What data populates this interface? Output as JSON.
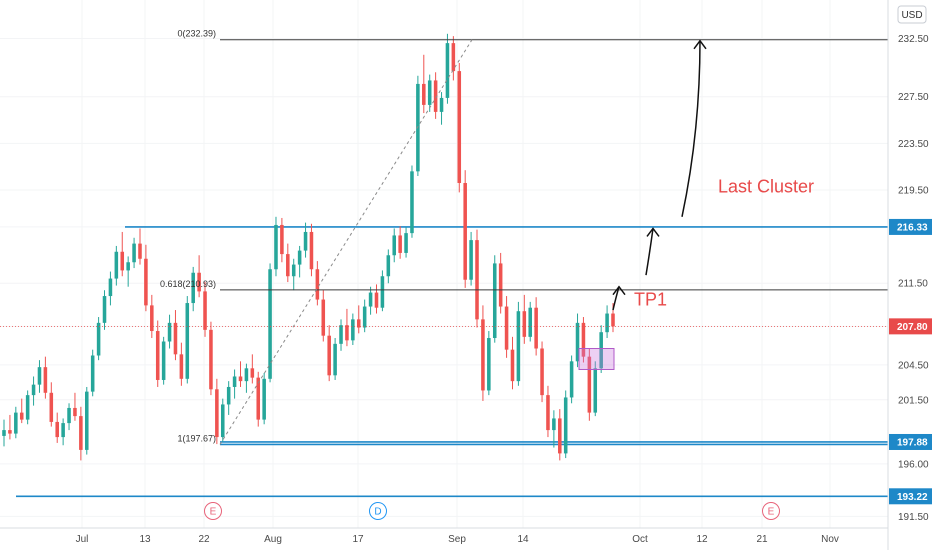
{
  "chart_data": {
    "type": "candlestick",
    "currency": "USD",
    "x_ticks": [
      "Jul",
      "13",
      "22",
      "Aug",
      "17",
      "Sep",
      "14",
      "Oct",
      "12",
      "21",
      "Nov"
    ],
    "y_ticks": [
      "191.50",
      "196.00",
      "201.50",
      "204.50",
      "207.80",
      "211.50",
      "216.33",
      "219.50",
      "223.50",
      "227.50",
      "232.50"
    ],
    "ylim": [
      190.5,
      235.8
    ],
    "price_labels": [
      {
        "value": 216.33,
        "text": "216.33",
        "color": "#1e88c8"
      },
      {
        "value": 207.8,
        "text": "207.80",
        "color": "#e84a4a"
      },
      {
        "value": 197.88,
        "text": "197.88",
        "color": "#1e88c8"
      },
      {
        "value": 193.22,
        "text": "193.22",
        "color": "#1e88c8"
      }
    ],
    "horizontal_lines": [
      {
        "value": 216.33,
        "color": "#1e88c8"
      },
      {
        "value": 197.88,
        "color": "#1e88c8"
      },
      {
        "value": 197.67,
        "color": "#1e88c8"
      },
      {
        "value": 193.22,
        "color": "#1e88c8"
      }
    ],
    "fib_levels": [
      {
        "ratio": "0",
        "value": 232.39,
        "text": "0(232.39)"
      },
      {
        "ratio": "0.618",
        "value": 210.93,
        "text": "0.618(210.93)"
      },
      {
        "ratio": "1",
        "value": 197.67,
        "text": "1(197.67)"
      }
    ],
    "last_price_line": 207.8,
    "events": [
      {
        "letter": "E",
        "x": 22,
        "color": "#e8647a"
      },
      {
        "letter": "D",
        "x": 17,
        "color": "#2196f3"
      },
      {
        "letter": "E",
        "x": 21,
        "color": "#e8647a"
      }
    ],
    "annotations": [
      {
        "text": "Last Cluster",
        "color": "#e84a4a"
      },
      {
        "text": "TP1",
        "color": "#e84a4a"
      }
    ],
    "candles": [
      [
        198.4,
        199.8,
        197.5,
        198.9
      ],
      [
        198.9,
        200.2,
        198.1,
        198.6
      ],
      [
        198.6,
        200.9,
        198.2,
        200.4
      ],
      [
        200.4,
        201.6,
        199.5,
        199.8
      ],
      [
        199.8,
        202.3,
        199.4,
        201.9
      ],
      [
        201.9,
        203.5,
        201.0,
        202.8
      ],
      [
        202.8,
        204.9,
        202.1,
        204.3
      ],
      [
        204.3,
        205.2,
        201.6,
        202.1
      ],
      [
        202.1,
        203.0,
        199.2,
        199.6
      ],
      [
        199.6,
        200.4,
        197.8,
        198.3
      ],
      [
        198.3,
        199.9,
        197.6,
        199.5
      ],
      [
        199.5,
        201.2,
        198.9,
        200.8
      ],
      [
        200.8,
        202.1,
        199.7,
        200.1
      ],
      [
        200.1,
        200.9,
        196.3,
        197.2
      ],
      [
        197.2,
        202.6,
        196.8,
        202.2
      ],
      [
        202.2,
        205.8,
        201.8,
        205.3
      ],
      [
        205.3,
        208.6,
        204.9,
        208.1
      ],
      [
        208.1,
        210.9,
        207.5,
        210.4
      ],
      [
        210.4,
        212.5,
        209.6,
        211.9
      ],
      [
        211.9,
        214.7,
        211.3,
        214.2
      ],
      [
        214.2,
        215.9,
        212.1,
        212.6
      ],
      [
        212.6,
        213.8,
        211.2,
        213.3
      ],
      [
        213.3,
        215.4,
        212.8,
        214.9
      ],
      [
        214.9,
        216.2,
        213.1,
        213.6
      ],
      [
        213.6,
        214.8,
        209.1,
        209.6
      ],
      [
        209.6,
        210.5,
        206.8,
        207.4
      ],
      [
        207.4,
        208.3,
        202.6,
        203.2
      ],
      [
        203.2,
        206.9,
        202.8,
        206.5
      ],
      [
        206.5,
        208.8,
        205.9,
        208.1
      ],
      [
        208.1,
        209.2,
        204.9,
        205.4
      ],
      [
        205.4,
        206.4,
        202.7,
        203.3
      ],
      [
        203.3,
        210.4,
        202.9,
        209.8
      ],
      [
        209.8,
        212.9,
        209.1,
        212.4
      ],
      [
        212.4,
        213.9,
        210.3,
        210.8
      ],
      [
        210.8,
        211.6,
        206.9,
        207.5
      ],
      [
        207.5,
        208.2,
        201.9,
        202.4
      ],
      [
        202.4,
        203.3,
        197.7,
        198.3
      ],
      [
        198.3,
        201.6,
        197.9,
        201.1
      ],
      [
        201.1,
        203.1,
        200.2,
        202.6
      ],
      [
        202.6,
        204.1,
        201.6,
        203.5
      ],
      [
        203.5,
        204.8,
        202.6,
        203.1
      ],
      [
        203.1,
        204.6,
        202.1,
        204.2
      ],
      [
        204.2,
        205.4,
        202.9,
        203.4
      ],
      [
        203.4,
        203.9,
        199.2,
        199.8
      ],
      [
        199.8,
        203.8,
        199.4,
        203.3
      ],
      [
        203.3,
        213.2,
        203.0,
        212.7
      ],
      [
        212.7,
        217.2,
        212.1,
        216.5
      ],
      [
        216.5,
        217.1,
        213.3,
        214.0
      ],
      [
        214.0,
        214.9,
        211.6,
        212.1
      ],
      [
        212.1,
        213.6,
        210.9,
        213.1
      ],
      [
        213.1,
        214.7,
        212.0,
        214.3
      ],
      [
        214.3,
        216.7,
        213.7,
        215.9
      ],
      [
        215.9,
        216.6,
        212.1,
        212.7
      ],
      [
        212.7,
        213.4,
        209.6,
        210.1
      ],
      [
        210.1,
        210.9,
        206.5,
        207.0
      ],
      [
        207.0,
        207.9,
        203.1,
        203.6
      ],
      [
        203.6,
        206.8,
        203.2,
        206.3
      ],
      [
        206.3,
        208.4,
        205.7,
        207.9
      ],
      [
        207.9,
        209.3,
        206.1,
        206.6
      ],
      [
        206.6,
        208.9,
        206.2,
        208.4
      ],
      [
        208.4,
        209.6,
        207.2,
        207.7
      ],
      [
        207.7,
        210.1,
        207.3,
        209.5
      ],
      [
        209.5,
        211.2,
        208.8,
        210.7
      ],
      [
        210.7,
        211.4,
        208.9,
        209.4
      ],
      [
        209.4,
        212.6,
        209.1,
        212.1
      ],
      [
        212.1,
        214.4,
        211.5,
        213.9
      ],
      [
        213.9,
        216.2,
        213.3,
        215.6
      ],
      [
        215.6,
        216.4,
        213.6,
        214.1
      ],
      [
        214.1,
        216.3,
        213.7,
        215.8
      ],
      [
        215.8,
        221.6,
        215.4,
        221.1
      ],
      [
        221.1,
        229.3,
        220.7,
        228.6
      ],
      [
        228.6,
        231.1,
        226.1,
        226.8
      ],
      [
        226.8,
        229.4,
        226.2,
        228.9
      ],
      [
        228.9,
        229.6,
        225.6,
        226.2
      ],
      [
        226.2,
        227.9,
        225.1,
        227.4
      ],
      [
        227.4,
        232.9,
        226.9,
        232.1
      ],
      [
        232.1,
        232.7,
        228.9,
        229.7
      ],
      [
        229.7,
        230.4,
        219.3,
        220.1
      ],
      [
        220.1,
        221.2,
        211.1,
        211.8
      ],
      [
        211.8,
        215.9,
        211.3,
        215.2
      ],
      [
        215.2,
        216.1,
        207.7,
        208.4
      ],
      [
        208.4,
        209.6,
        201.4,
        202.3
      ],
      [
        202.3,
        207.4,
        201.9,
        206.8
      ],
      [
        206.8,
        213.9,
        206.4,
        213.2
      ],
      [
        213.2,
        214.1,
        208.9,
        209.5
      ],
      [
        209.5,
        210.4,
        205.1,
        205.8
      ],
      [
        205.8,
        206.9,
        202.4,
        203.1
      ],
      [
        203.1,
        209.9,
        202.7,
        209.1
      ],
      [
        209.1,
        210.5,
        206.3,
        206.9
      ],
      [
        206.9,
        209.9,
        206.5,
        209.4
      ],
      [
        209.4,
        210.3,
        205.3,
        205.9
      ],
      [
        205.9,
        206.5,
        201.3,
        201.9
      ],
      [
        201.9,
        202.7,
        198.3,
        198.9
      ],
      [
        198.9,
        200.6,
        197.4,
        199.9
      ],
      [
        199.9,
        200.7,
        196.3,
        196.9
      ],
      [
        196.9,
        202.3,
        196.5,
        201.7
      ],
      [
        201.7,
        205.3,
        201.2,
        204.8
      ],
      [
        204.8,
        208.9,
        204.3,
        208.1
      ],
      [
        208.1,
        208.6,
        204.7,
        205.2
      ],
      [
        205.2,
        205.9,
        199.7,
        200.4
      ],
      [
        200.4,
        204.8,
        200.1,
        204.2
      ],
      [
        204.2,
        207.9,
        203.8,
        207.3
      ],
      [
        207.3,
        209.6,
        206.8,
        208.9
      ],
      [
        208.9,
        209.8,
        207.3,
        207.8
      ]
    ]
  }
}
